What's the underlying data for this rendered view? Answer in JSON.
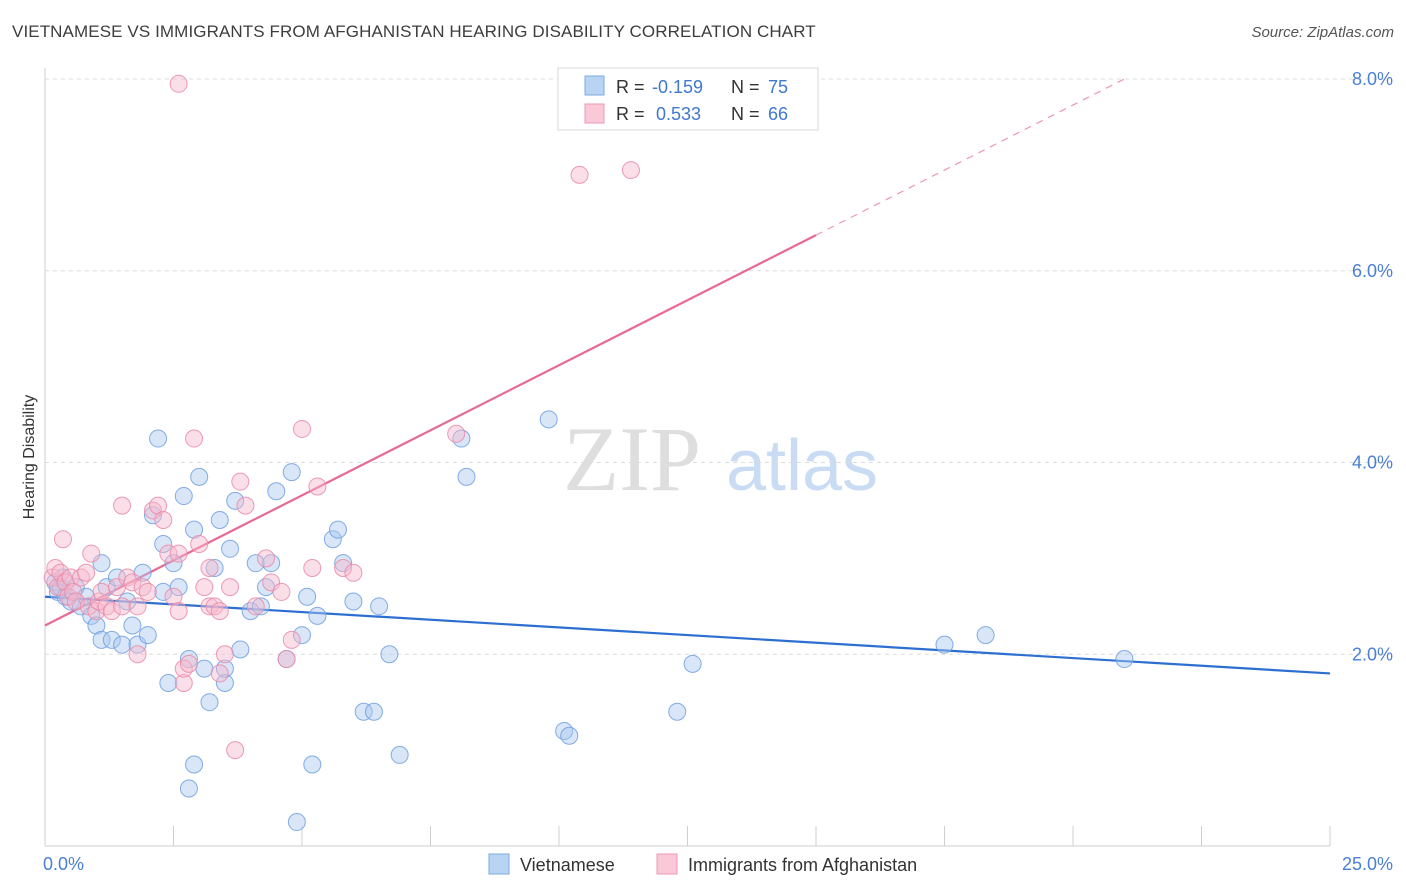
{
  "title": "VIETNAMESE VS IMMIGRANTS FROM AFGHANISTAN HEARING DISABILITY CORRELATION CHART",
  "source": "Source: ZipAtlas.com",
  "watermark": {
    "zip": "ZIP",
    "atlas": "atlas"
  },
  "colors": {
    "blue": "#a8c8f0",
    "blue_stroke": "#6f9fe0",
    "blue_line": "#2d6fd1",
    "pink": "#f7b8cc",
    "pink_stroke": "#ea8aa8",
    "pink_line": "#e66a94",
    "tick_label": "#4a7fd4",
    "grid": "#dcdcdc"
  },
  "legend": {
    "rows": [
      {
        "r_label": "R =",
        "r_value": "-0.159",
        "n_label": "N =",
        "n_value": "75"
      },
      {
        "r_label": "R =",
        "r_value": "0.533",
        "n_label": "N =",
        "n_value": "66"
      }
    ]
  },
  "bottom_legend": [
    "Vietnamese",
    "Immigrants from Afghanistan"
  ],
  "chart_data": {
    "type": "scatter",
    "title": "VIETNAMESE VS IMMIGRANTS FROM AFGHANISTAN HEARING DISABILITY CORRELATION CHART",
    "xlabel": "",
    "ylabel": "Hearing Disability",
    "xlim": [
      0,
      25
    ],
    "ylim": [
      0,
      8.3
    ],
    "x_tick_labels": [
      {
        "value": 0,
        "label": "0.0%"
      },
      {
        "value": 25,
        "label": "25.0%"
      }
    ],
    "y_ticks": [
      {
        "value": 2,
        "label": "2.0%"
      },
      {
        "value": 4,
        "label": "4.0%"
      },
      {
        "value": 6,
        "label": "6.0%"
      },
      {
        "value": 8,
        "label": "8.0%"
      }
    ],
    "grid": true,
    "legend_position": "top-center",
    "series": [
      {
        "name": "Vietnamese",
        "color": "#a8c8f0",
        "trend": {
          "x0": 0,
          "y0": 2.6,
          "x1": 25,
          "y1": 1.8,
          "dashed_from": null
        },
        "points": [
          [
            0.2,
            2.75
          ],
          [
            0.25,
            2.65
          ],
          [
            0.3,
            2.7
          ],
          [
            0.35,
            2.8
          ],
          [
            0.4,
            2.6
          ],
          [
            0.5,
            2.55
          ],
          [
            0.6,
            2.7
          ],
          [
            0.7,
            2.5
          ],
          [
            0.8,
            2.6
          ],
          [
            0.9,
            2.4
          ],
          [
            1.0,
            2.3
          ],
          [
            1.1,
            2.15
          ],
          [
            1.1,
            2.95
          ],
          [
            1.2,
            2.7
          ],
          [
            1.3,
            2.15
          ],
          [
            1.4,
            2.8
          ],
          [
            1.5,
            2.1
          ],
          [
            1.6,
            2.55
          ],
          [
            1.7,
            2.3
          ],
          [
            1.8,
            2.1
          ],
          [
            1.9,
            2.85
          ],
          [
            2.0,
            2.2
          ],
          [
            2.1,
            3.45
          ],
          [
            2.2,
            4.25
          ],
          [
            2.3,
            2.65
          ],
          [
            2.3,
            3.15
          ],
          [
            2.4,
            1.7
          ],
          [
            2.5,
            2.95
          ],
          [
            2.6,
            2.7
          ],
          [
            2.7,
            3.65
          ],
          [
            2.8,
            1.95
          ],
          [
            2.9,
            3.3
          ],
          [
            2.9,
            0.85
          ],
          [
            2.8,
            0.6
          ],
          [
            3.0,
            3.85
          ],
          [
            3.1,
            1.85
          ],
          [
            3.2,
            1.5
          ],
          [
            3.3,
            2.9
          ],
          [
            3.4,
            3.4
          ],
          [
            3.5,
            1.7
          ],
          [
            3.5,
            1.85
          ],
          [
            3.6,
            3.1
          ],
          [
            3.7,
            3.6
          ],
          [
            3.8,
            2.05
          ],
          [
            4.0,
            2.45
          ],
          [
            4.1,
            2.95
          ],
          [
            4.2,
            2.5
          ],
          [
            4.3,
            2.7
          ],
          [
            4.4,
            2.95
          ],
          [
            4.5,
            3.7
          ],
          [
            4.7,
            1.95
          ],
          [
            4.8,
            3.9
          ],
          [
            4.9,
            0.25
          ],
          [
            5.0,
            2.2
          ],
          [
            5.1,
            2.6
          ],
          [
            5.2,
            0.85
          ],
          [
            5.3,
            2.4
          ],
          [
            5.6,
            3.2
          ],
          [
            5.7,
            3.3
          ],
          [
            5.8,
            2.95
          ],
          [
            6.0,
            2.55
          ],
          [
            6.2,
            1.4
          ],
          [
            6.4,
            1.4
          ],
          [
            6.5,
            2.5
          ],
          [
            6.7,
            2.0
          ],
          [
            6.9,
            0.95
          ],
          [
            8.1,
            4.25
          ],
          [
            8.2,
            3.85
          ],
          [
            9.8,
            4.45
          ],
          [
            10.1,
            1.2
          ],
          [
            10.2,
            1.15
          ],
          [
            12.3,
            1.4
          ],
          [
            12.6,
            1.9
          ],
          [
            17.5,
            2.1
          ],
          [
            18.3,
            2.2
          ],
          [
            21.0,
            1.95
          ]
        ]
      },
      {
        "name": "Immigrants from Afghanistan",
        "color": "#f7b8cc",
        "trend": {
          "x0": 0,
          "y0": 2.3,
          "x1": 21.0,
          "y1": 8.0,
          "dashed_from": 15.0
        },
        "points": [
          [
            0.15,
            2.8
          ],
          [
            0.2,
            2.9
          ],
          [
            0.25,
            2.7
          ],
          [
            0.3,
            2.85
          ],
          [
            0.35,
            3.2
          ],
          [
            0.4,
            2.75
          ],
          [
            0.45,
            2.6
          ],
          [
            0.5,
            2.8
          ],
          [
            0.55,
            2.65
          ],
          [
            0.6,
            2.55
          ],
          [
            0.7,
            2.8
          ],
          [
            0.8,
            2.85
          ],
          [
            0.85,
            2.5
          ],
          [
            0.9,
            3.05
          ],
          [
            1.0,
            2.45
          ],
          [
            1.05,
            2.55
          ],
          [
            1.1,
            2.65
          ],
          [
            1.2,
            2.5
          ],
          [
            1.3,
            2.45
          ],
          [
            1.4,
            2.7
          ],
          [
            1.5,
            2.5
          ],
          [
            1.6,
            2.8
          ],
          [
            1.7,
            2.75
          ],
          [
            1.8,
            2.5
          ],
          [
            1.9,
            2.7
          ],
          [
            2.0,
            2.65
          ],
          [
            2.1,
            3.5
          ],
          [
            2.2,
            3.55
          ],
          [
            2.3,
            3.4
          ],
          [
            2.4,
            3.05
          ],
          [
            2.5,
            2.6
          ],
          [
            2.6,
            3.05
          ],
          [
            2.6,
            2.45
          ],
          [
            2.7,
            1.7
          ],
          [
            2.7,
            1.85
          ],
          [
            2.8,
            1.9
          ],
          [
            2.9,
            4.25
          ],
          [
            3.0,
            3.15
          ],
          [
            3.1,
            2.7
          ],
          [
            3.2,
            2.5
          ],
          [
            3.2,
            2.9
          ],
          [
            3.3,
            2.5
          ],
          [
            3.4,
            1.8
          ],
          [
            3.4,
            2.45
          ],
          [
            3.5,
            2.0
          ],
          [
            3.6,
            2.7
          ],
          [
            3.7,
            1.0
          ],
          [
            3.8,
            3.8
          ],
          [
            3.9,
            3.55
          ],
          [
            4.1,
            2.5
          ],
          [
            4.3,
            3.0
          ],
          [
            4.4,
            2.75
          ],
          [
            4.6,
            2.65
          ],
          [
            4.7,
            1.95
          ],
          [
            4.8,
            2.15
          ],
          [
            5.0,
            4.35
          ],
          [
            5.2,
            2.9
          ],
          [
            5.3,
            3.75
          ],
          [
            5.8,
            2.9
          ],
          [
            6.0,
            2.85
          ],
          [
            1.8,
            2.0
          ],
          [
            1.5,
            3.55
          ],
          [
            8.0,
            4.3
          ],
          [
            2.6,
            7.95
          ],
          [
            10.4,
            7.0
          ],
          [
            11.4,
            7.05
          ]
        ]
      }
    ]
  }
}
